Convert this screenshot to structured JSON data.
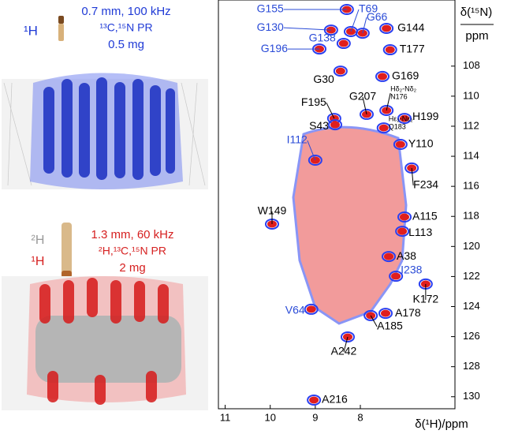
{
  "left_panel": {
    "sample1": {
      "nucleus": "¹H",
      "rotor": "0.7 mm, 100 kHz",
      "labeling": "¹³C,¹⁵N PR",
      "amount": "0.5 mg"
    },
    "sample2": {
      "nucleus_top": "²H",
      "nucleus_bottom": "¹H",
      "rotor": "1.3 mm, 60 kHz",
      "labeling": "²H,¹³C,¹⁵N PR",
      "amount": "2 mg"
    }
  },
  "spectrum": {
    "x_label": "δ(¹H)/ppm",
    "y_label_top": "δ(¹⁵N)",
    "y_label_bottom": "ppm",
    "xlim": [
      11.15,
      5.9
    ],
    "ylim": [
      103.6,
      130.8
    ],
    "xticks": [
      11,
      10,
      9,
      8
    ],
    "yticks": [
      108,
      110,
      112,
      114,
      116,
      118,
      120,
      122,
      124,
      126,
      128,
      130
    ],
    "peaks": [
      {
        "label": "G155",
        "x": 8.3,
        "y": 104.23,
        "color": "#2a4bd7"
      },
      {
        "label": "T69",
        "x": 8.21,
        "y": 105.7,
        "color": "#2a4bd7"
      },
      {
        "label": "G66",
        "x": 7.95,
        "y": 105.81,
        "color": "#2a4bd7"
      },
      {
        "label": "G144",
        "x": 7.42,
        "y": 105.49,
        "color": "#000000"
      },
      {
        "label": "G130",
        "x": 8.65,
        "y": 105.6,
        "color": "#2a4bd7"
      },
      {
        "label": "G138",
        "x": 8.37,
        "y": 106.49,
        "color": "#2a4bd7"
      },
      {
        "label": "G196",
        "x": 8.91,
        "y": 106.86,
        "color": "#2a4bd7"
      },
      {
        "label": "T177",
        "x": 7.34,
        "y": 106.91,
        "color": "#000000"
      },
      {
        "label": "G30",
        "x": 8.44,
        "y": 108.33,
        "color": "#000000"
      },
      {
        "label": "G169",
        "x": 7.51,
        "y": 108.69,
        "color": "#000000"
      },
      {
        "label": "G207",
        "x": 7.86,
        "y": 111.21,
        "color": "#000000"
      },
      {
        "label": "Hδ₂-Nδ₂",
        "note": "N176",
        "x": 7.42,
        "y": 110.95,
        "color": "#000000"
      },
      {
        "label": "F195",
        "x": 8.58,
        "y": 111.48,
        "color": "#000000"
      },
      {
        "label": "H199",
        "x": 7.02,
        "y": 111.48,
        "color": "#000000"
      },
      {
        "label": "S43",
        "x": 8.56,
        "y": 111.9,
        "color": "#000000"
      },
      {
        "label": "Hε₂-Nε₂",
        "note": "Q183",
        "x": 7.48,
        "y": 112.11,
        "color": "#000000"
      },
      {
        "label": "I112",
        "x": 9.0,
        "y": 114.26,
        "color": "#2a4bd7"
      },
      {
        "label": "Y110",
        "x": 7.11,
        "y": 113.21,
        "color": "#000000"
      },
      {
        "label": "F234",
        "x": 6.86,
        "y": 114.78,
        "color": "#000000"
      },
      {
        "label": "W149",
        "x": 9.96,
        "y": 118.51,
        "color": "#000000"
      },
      {
        "label": "A115",
        "x": 7.02,
        "y": 118.04,
        "color": "#000000"
      },
      {
        "label": "L113",
        "x": 7.07,
        "y": 118.99,
        "color": "#000000"
      },
      {
        "label": "A38",
        "x": 7.37,
        "y": 120.67,
        "color": "#000000"
      },
      {
        "label": "I238",
        "x": 7.21,
        "y": 121.98,
        "color": "#2a4bd7"
      },
      {
        "label": "K172",
        "x": 6.55,
        "y": 122.5,
        "color": "#000000"
      },
      {
        "label": "V64",
        "x": 9.09,
        "y": 124.18,
        "color": "#2a4bd7"
      },
      {
        "label": "A178",
        "x": 7.44,
        "y": 124.45,
        "color": "#000000"
      },
      {
        "label": "A185",
        "x": 7.77,
        "y": 124.6,
        "color": "#000000"
      },
      {
        "label": "A242",
        "x": 8.28,
        "y": 126.02,
        "color": "#000000"
      },
      {
        "label": "A216",
        "x": 9.03,
        "y": 130.22,
        "color": "#000000"
      }
    ]
  }
}
